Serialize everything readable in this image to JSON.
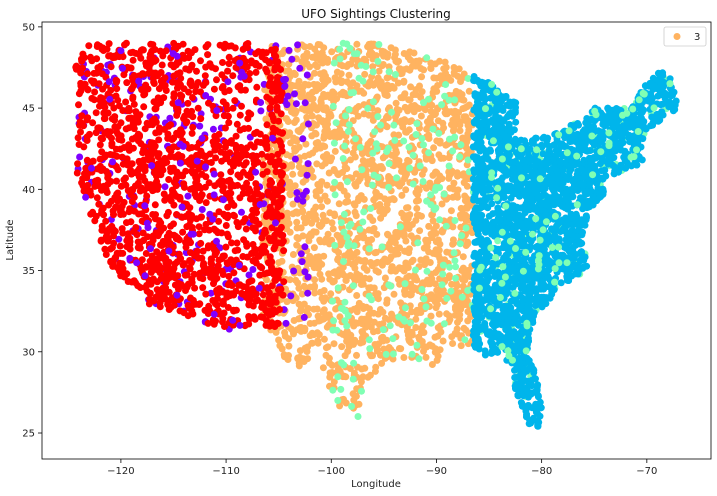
{
  "chart_data": {
    "type": "scatter",
    "title": "UFO Sightings Clustering",
    "xlabel": "Longitude",
    "ylabel": "Latitude",
    "xlim": [
      -127.5,
      -63.9
    ],
    "ylim": [
      23.4,
      50.3
    ],
    "xticks": [
      -120,
      -110,
      -100,
      -90,
      -80,
      -70
    ],
    "yticks": [
      25,
      30,
      35,
      40,
      45,
      50
    ],
    "grid": false,
    "legend": {
      "placement": "top-right",
      "entries": [
        {
          "label": "3",
          "color": "#ffb360"
        }
      ]
    },
    "clusters": [
      {
        "id": 0,
        "color": "#7f00ff",
        "lon_range": [
          -124.5,
          -102
        ],
        "lat_range": [
          31,
          49
        ]
      },
      {
        "id": 1,
        "color": "#00b5eb",
        "lon_range": [
          -86.5,
          -67
        ],
        "lat_range": [
          24.5,
          47.3
        ]
      },
      {
        "id": 2,
        "color": "#80ffb4",
        "lon_range": [
          -100,
          -67
        ],
        "lat_range": [
          26,
          49
        ]
      },
      {
        "id": 3,
        "color": "#ffb360",
        "lon_range": [
          -106.5,
          -86.5
        ],
        "lat_range": [
          26,
          49
        ]
      },
      {
        "id": 4,
        "color": "#ff0000",
        "lon_range": [
          -124.7,
          -104.5
        ],
        "lat_range": [
          31.5,
          49
        ]
      }
    ]
  }
}
